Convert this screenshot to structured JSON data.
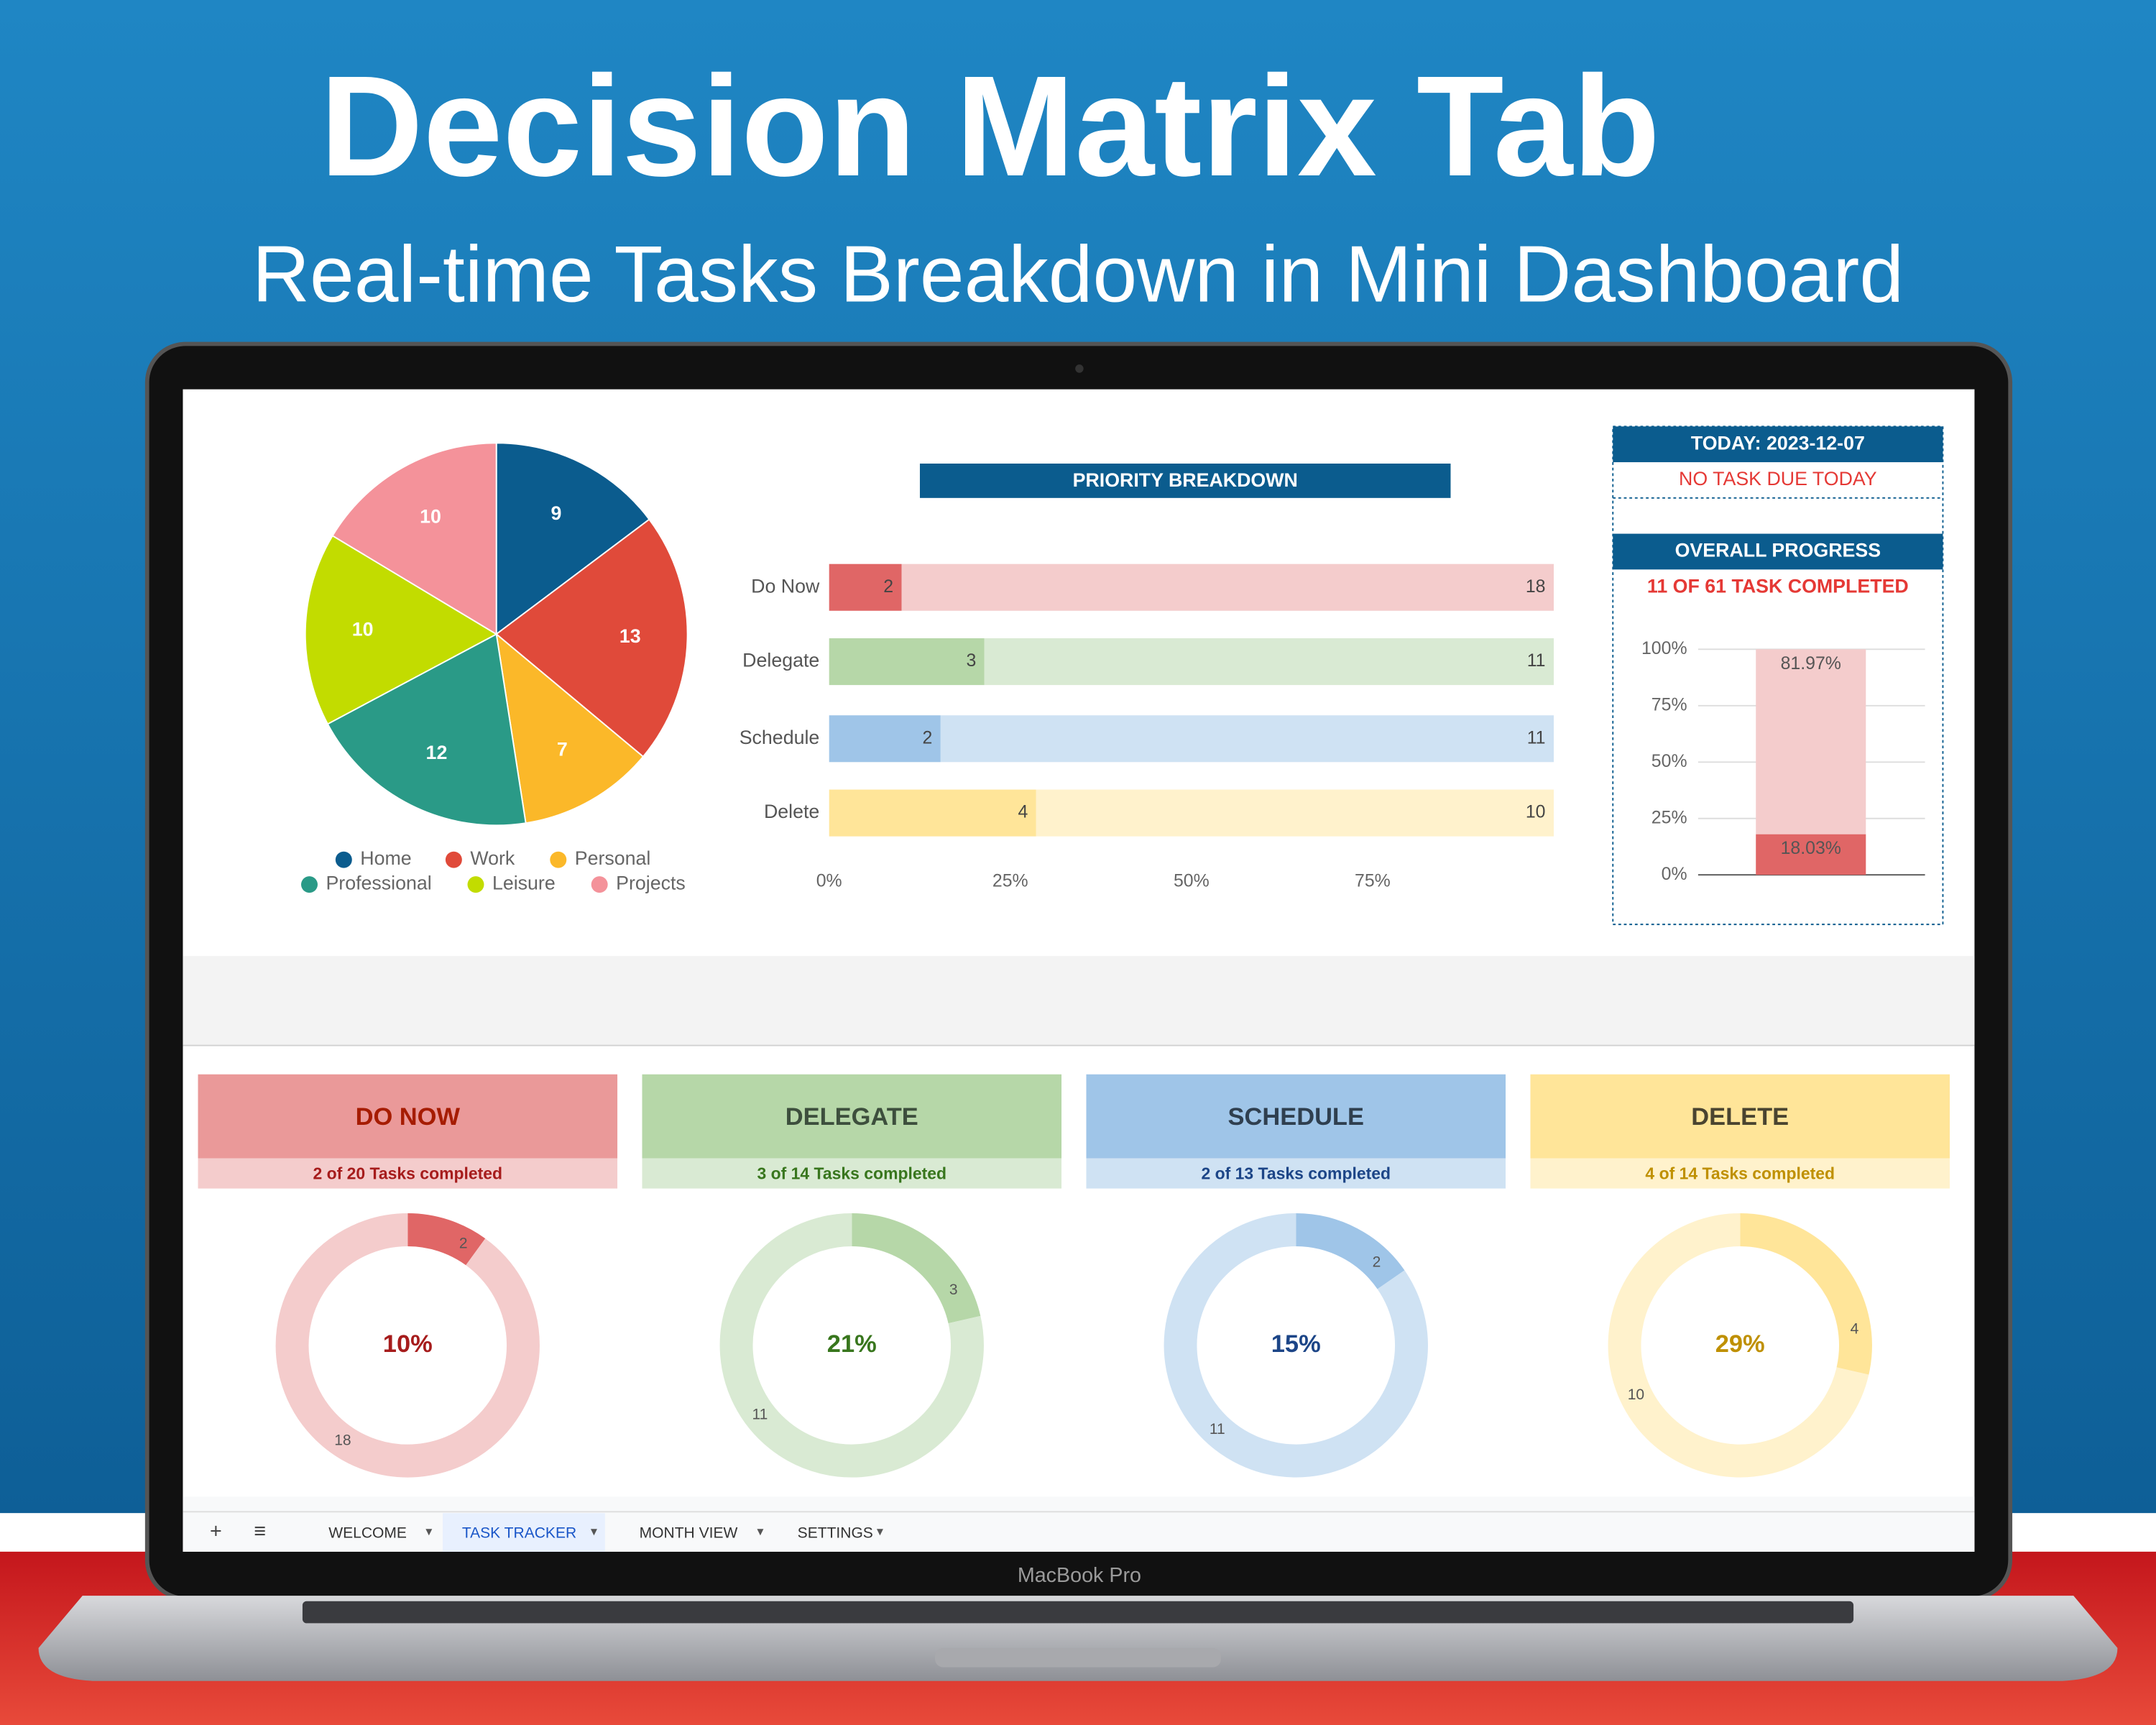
{
  "header": {
    "title": "Decision Matrix Tab",
    "subtitle": "Real-time Tasks Breakdown in Mini Dashboard"
  },
  "laptop_label": "MacBook Pro",
  "today": {
    "label": "TODAY: 2023-12-07",
    "status": "NO TASK DUE TODAY"
  },
  "tabs": {
    "items": [
      "WELCOME",
      "TASK TRACKER",
      "MONTH VIEW",
      "SETTINGS"
    ],
    "active": 1
  },
  "chart_data": [
    {
      "type": "pie",
      "categories": [
        "Home",
        "Work",
        "Personal",
        "Professional",
        "Leisure",
        "Projects"
      ],
      "values": [
        9,
        13,
        7,
        12,
        10,
        10
      ],
      "colors": [
        "#0b5c8e",
        "#e04a3a",
        "#fbb829",
        "#2a9a87",
        "#c2dc00",
        "#f4929a"
      ],
      "legend": "bottom"
    },
    {
      "type": "hbar",
      "stack": "percent",
      "title": "PRIORITY BREAKDOWN",
      "categories": [
        "Do Now",
        "Delegate",
        "Schedule",
        "Delete"
      ],
      "series": [
        {
          "colors": [
            "#e06666",
            "#b6d7a8",
            "#9fc5e8",
            "#ffe599"
          ],
          "values": [
            2,
            3,
            2,
            4
          ]
        },
        {
          "colors": [
            "#f4cccc",
            "#d9ead3",
            "#cfe2f3",
            "#fff2cc"
          ],
          "values": [
            18,
            11,
            11,
            10
          ]
        }
      ],
      "xlim": [
        0,
        100
      ],
      "xticks": [
        {
          "value": 0,
          "label": "0%"
        },
        {
          "value": 25,
          "label": "25%"
        },
        {
          "value": 50,
          "label": "50%"
        },
        {
          "value": 75,
          "label": "75%"
        }
      ]
    },
    {
      "type": "column",
      "stacked": true,
      "title": "OVERALL PROGRESS",
      "subtitle": "11 OF 61 TASK COMPLETED",
      "series": [
        {
          "color": "#e06666",
          "values": [
            18.03
          ],
          "value_labels": [
            "18.03%"
          ]
        },
        {
          "color": "#f4cccc",
          "values": [
            81.97
          ],
          "value_labels": [
            "81.97%"
          ]
        }
      ],
      "ylim": [
        0,
        100
      ],
      "yticks": [
        {
          "value": 0,
          "label": "0%"
        },
        {
          "value": 25,
          "label": "25%"
        },
        {
          "value": 50,
          "label": "50%"
        },
        {
          "value": 75,
          "label": "75%"
        },
        {
          "value": 100,
          "label": "100%"
        }
      ],
      "grid": true
    },
    {
      "type": "donut",
      "title": "DO NOW",
      "subtitle": "2 of 20 Tasks completed",
      "center_label": "10%",
      "values": [
        2,
        18
      ],
      "colors": [
        "#e06666",
        "#f4cccc"
      ],
      "header_color": "#ea9999",
      "title_color": "#a61c00",
      "text_color": "#a61c1c"
    },
    {
      "type": "donut",
      "title": "DELEGATE",
      "subtitle": "3 of 14 Tasks completed",
      "center_label": "21%",
      "values": [
        3,
        11
      ],
      "colors": [
        "#b6d7a8",
        "#d9ead3"
      ],
      "header_color": "#b6d7a8",
      "title_color": "#3d4f3d",
      "text_color": "#38761d"
    },
    {
      "type": "donut",
      "title": "SCHEDULE",
      "subtitle": "2 of 13 Tasks completed",
      "center_label": "15%",
      "values": [
        2,
        11
      ],
      "colors": [
        "#9fc5e8",
        "#cfe2f3"
      ],
      "header_color": "#9fc5e8",
      "title_color": "#2f3f4f",
      "text_color": "#1c4587"
    },
    {
      "type": "donut",
      "title": "DELETE",
      "subtitle": "4 of 14 Tasks completed",
      "center_label": "29%",
      "values": [
        4,
        10
      ],
      "colors": [
        "#ffe599",
        "#fff2cc"
      ],
      "header_color": "#ffe599",
      "title_color": "#4a4430",
      "text_color": "#bf9000"
    }
  ]
}
